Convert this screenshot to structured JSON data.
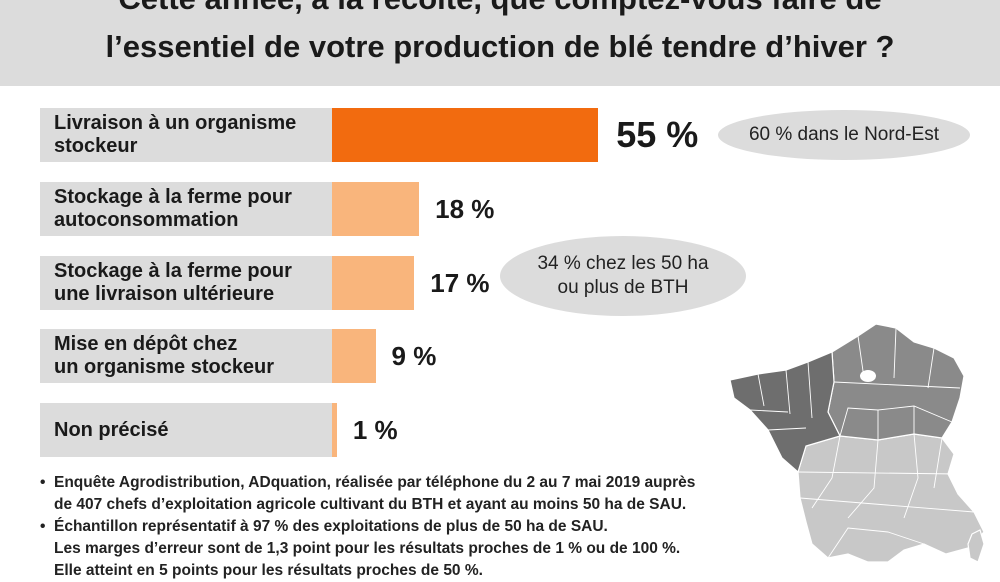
{
  "title": {
    "line1": "Cette année, à la récolte, que comptez-vous faire de",
    "line2": "l’essentiel de votre production de blé tendre d’hiver ?"
  },
  "chart_data": {
    "type": "bar",
    "orientation": "horizontal",
    "unit": "%",
    "categories": [
      "Livraison à un organisme stockeur",
      "Stockage à la ferme pour autoconsommation",
      "Stockage à la ferme pour une livraison ultérieure",
      "Mise en dépôt chez un organisme stockeur",
      "Non précisé"
    ],
    "category_lines": [
      [
        "Livraison à un organisme",
        "stockeur"
      ],
      [
        "Stockage à la ferme pour",
        "autoconsommation"
      ],
      [
        "Stockage à la ferme pour",
        "une livraison ultérieure"
      ],
      [
        "Mise en dépôt chez",
        "un organisme stockeur"
      ],
      [
        "Non précisé"
      ]
    ],
    "values": [
      55,
      18,
      17,
      9,
      1
    ],
    "value_labels": [
      "55 %",
      "18 %",
      "17 %",
      "9 %",
      "1 %"
    ],
    "highlight_index": 0,
    "colors": {
      "highlight": "#f26b0f",
      "other": "#f9b57c",
      "label_bg": "#dcdcdc"
    },
    "annotations": [
      {
        "text": "60 % dans le Nord-Est",
        "category_index": 0
      },
      {
        "text_lines": [
          "34 % chez les 50 ha",
          "ou plus de BTH"
        ],
        "category_index": 2
      }
    ]
  },
  "notes": [
    {
      "bullet": "•",
      "lines": [
        "Enquête Agrodistribution, ADquation, réalisée par téléphone du 2 au 7 mai 2019 auprès",
        "de 407 chefs d’exploitation agricole cultivant du BTH et ayant au moins 50 ha de SAU."
      ]
    },
    {
      "bullet": "•",
      "lines": [
        "Échantillon représentatif à 97 % des exploitations de plus de 50 ha de SAU.",
        "Les marges d’erreur sont de 1,3 point pour les résultats proches de 1 % ou de 100 %.",
        "Elle atteint en 5 points pour les résultats proches de 50 %."
      ]
    }
  ],
  "map": {
    "icon": "france-regions-map-icon",
    "colors": {
      "north_east": "#8a8a8a",
      "west": "#6e6e6e",
      "south": "#c8c8c8",
      "border": "#ffffff",
      "paris": "#ffffff"
    }
  }
}
